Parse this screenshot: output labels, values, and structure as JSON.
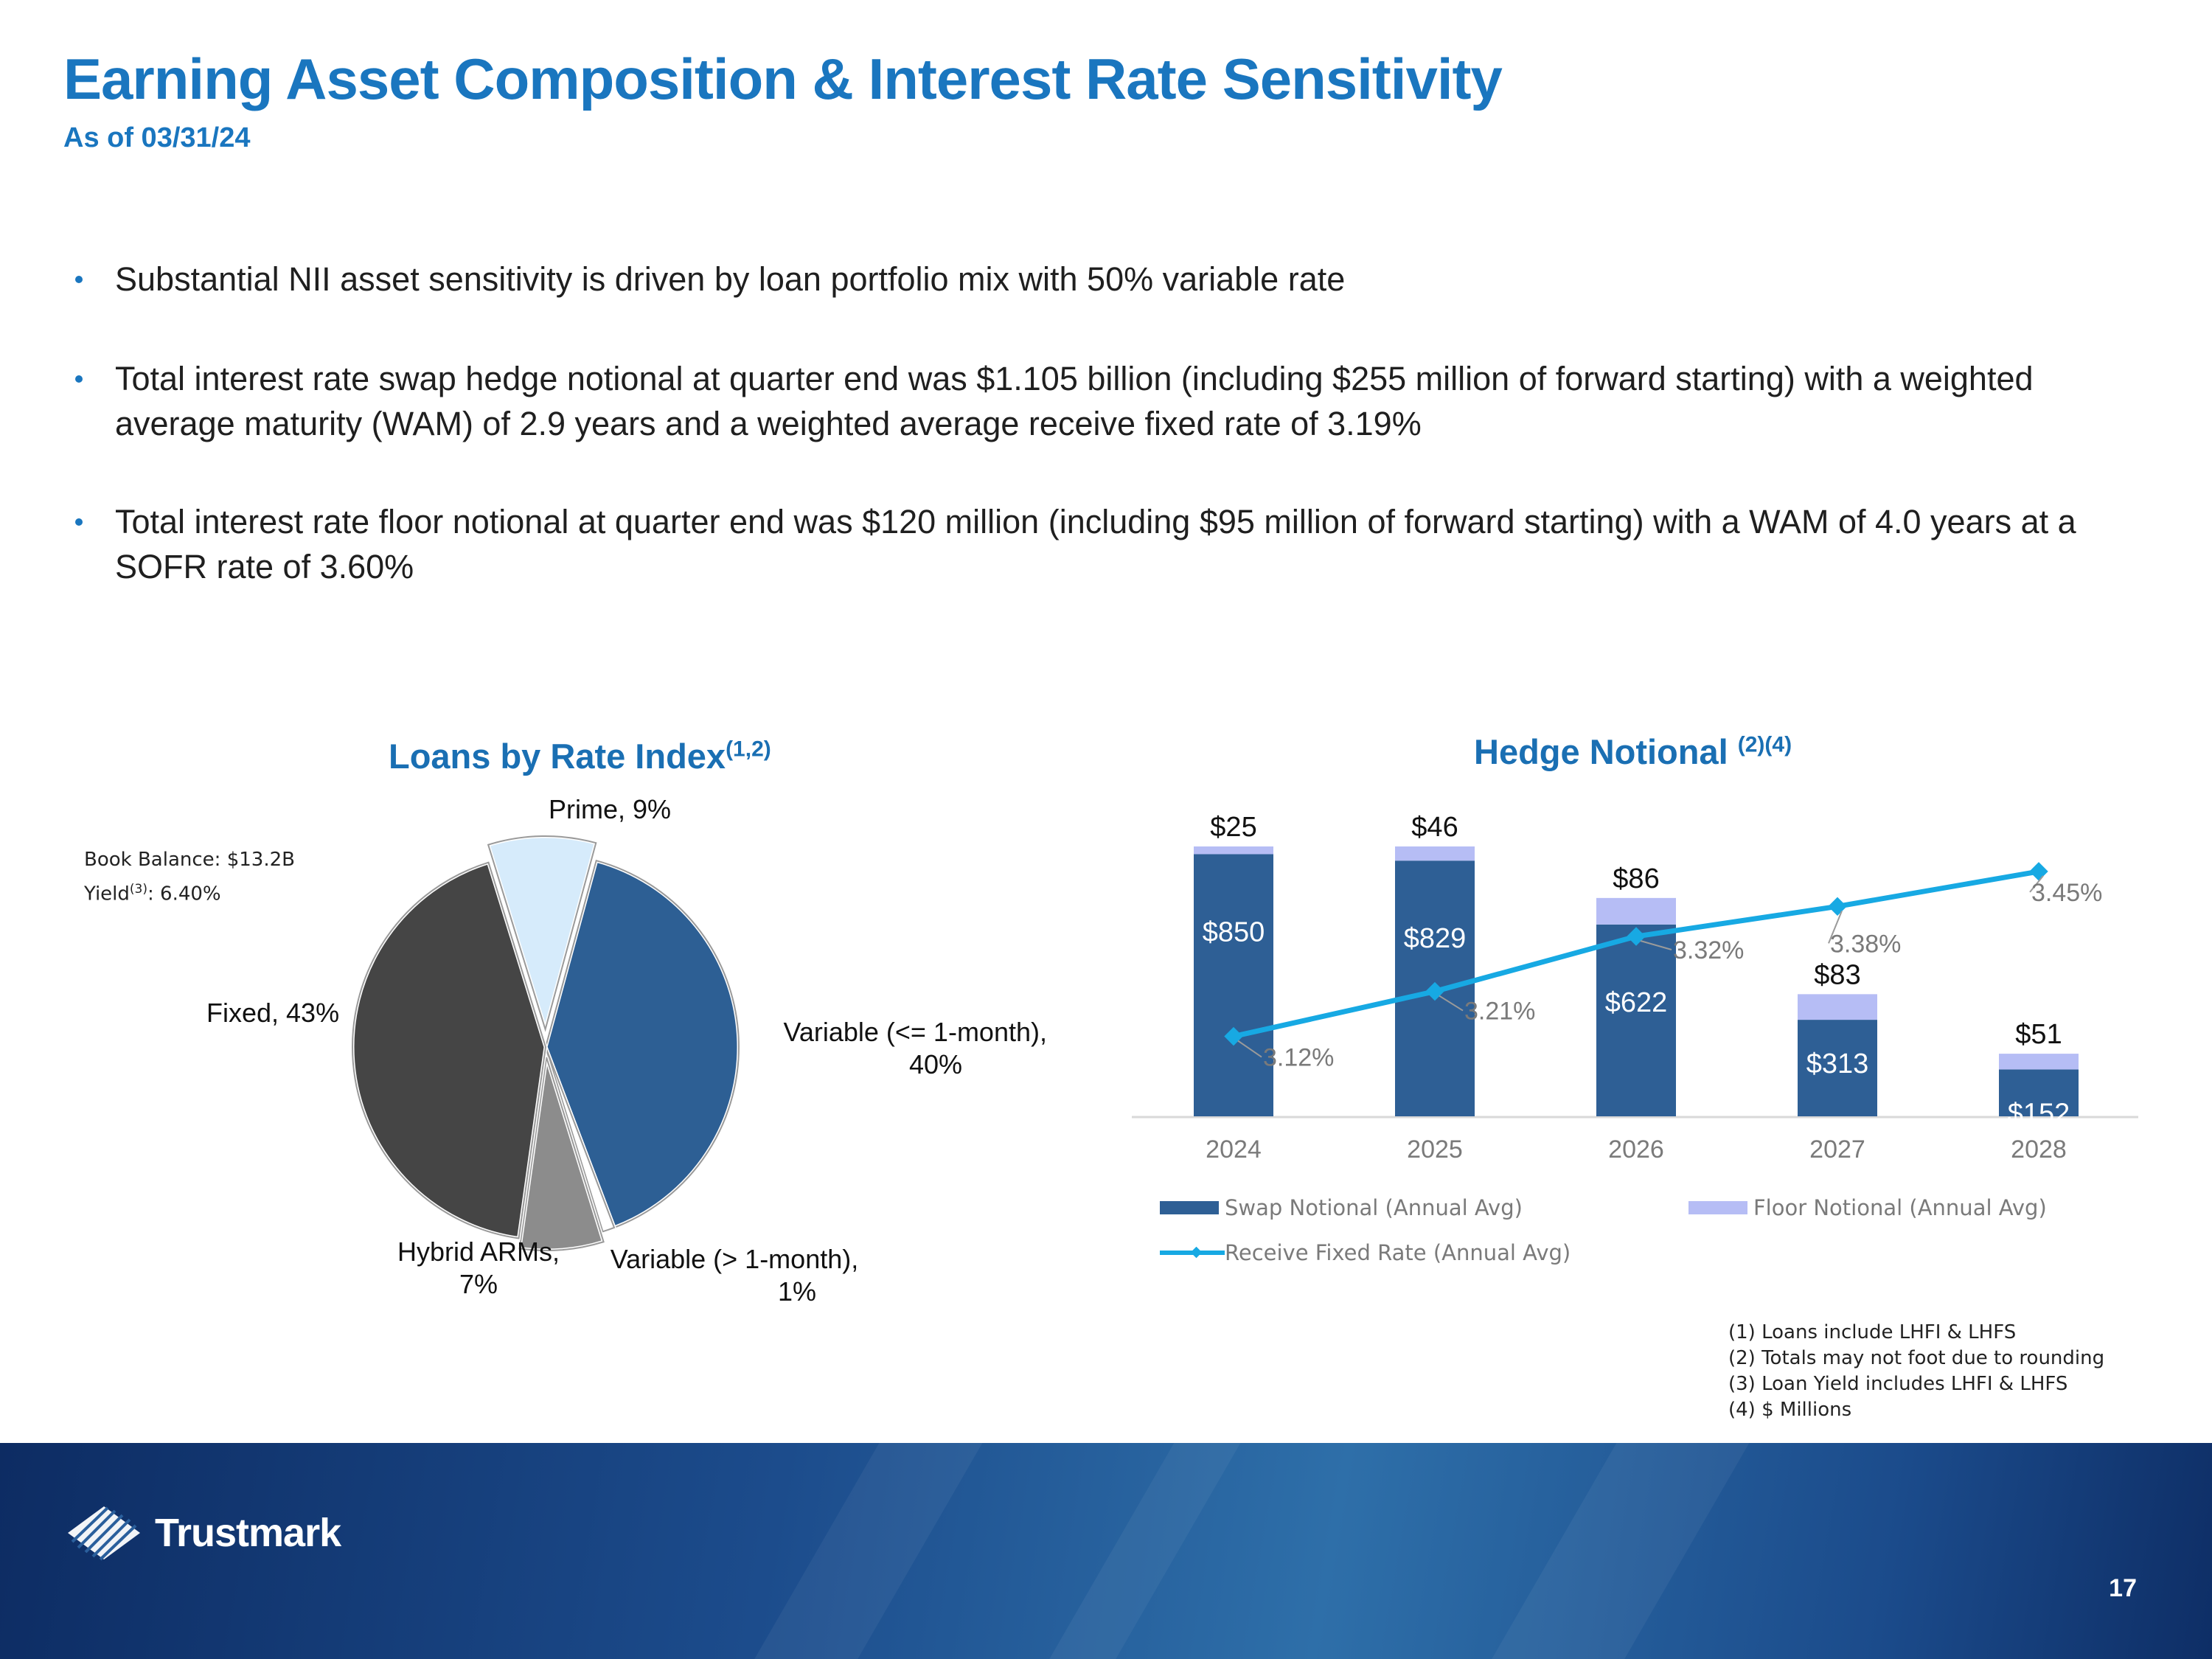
{
  "header": {
    "title": "Earning Asset Composition & Interest Rate Sensitivity",
    "subtitle": "As of 03/31/24"
  },
  "bullets": [
    "Substantial NII asset sensitivity is driven by loan portfolio mix with 50% variable rate",
    "Total interest rate swap hedge notional at quarter end was $1.105 billion (including $255 million of forward starting) with a weighted average maturity (WAM) of 2.9 years and a weighted average receive fixed rate of 3.19%",
    "Total interest rate floor notional at quarter end was $120 million (including $95 million of forward starting) with a WAM of 4.0 years at a SOFR rate of 3.60%"
  ],
  "pie_panel": {
    "title": "Loans by Rate Index",
    "title_sup": "(1,2)",
    "book_balance": "Book Balance: $13.2B",
    "yield_label": "Yield",
    "yield_sup": "(3)",
    "yield_value": ": 6.40%",
    "labels": {
      "prime": "Prime, 9%",
      "variable_short": [
        "Variable (<= 1-month),",
        "40%"
      ],
      "variable_long": [
        "Variable (> 1-month),",
        "1%"
      ],
      "hybrid": [
        "Hybrid ARMs,",
        "7%"
      ],
      "fixed": "Fixed, 43%"
    }
  },
  "bar_panel": {
    "title": "Hedge Notional ",
    "title_sup": "(2)(4)",
    "legend": {
      "swap": "Swap Notional (Annual Avg)",
      "floor": "Floor Notional (Annual Avg)",
      "rate": "Receive Fixed Rate (Annual Avg)"
    }
  },
  "chart_data": [
    {
      "type": "pie",
      "title": "Loans by Rate Index(1,2)",
      "slices": [
        {
          "name": "Prime",
          "value": 9
        },
        {
          "name": "Variable (<= 1-month)",
          "value": 40
        },
        {
          "name": "Variable (> 1-month)",
          "value": 1
        },
        {
          "name": "Hybrid ARMs",
          "value": 7
        },
        {
          "name": "Fixed",
          "value": 43
        }
      ]
    },
    {
      "type": "bar",
      "title": "Hedge Notional (2)(4)",
      "stacked": true,
      "categories": [
        "2024",
        "2025",
        "2026",
        "2027",
        "2028"
      ],
      "series": [
        {
          "name": "Swap Notional (Annual Avg)",
          "values": [
            850,
            829,
            622,
            313,
            152
          ],
          "labels": [
            "$850",
            "$829",
            "$622",
            "$313",
            "$152"
          ]
        },
        {
          "name": "Floor Notional (Annual Avg)",
          "values": [
            25,
            46,
            86,
            83,
            51
          ],
          "labels": [
            "$25",
            "$46",
            "$86",
            "$83",
            "$51"
          ]
        },
        {
          "name": "Receive Fixed Rate (Annual Avg)",
          "type": "line",
          "axis": "secondary",
          "values": [
            3.12,
            3.21,
            3.32,
            3.38,
            3.45
          ],
          "labels": [
            "3.12%",
            "3.21%",
            "3.32%",
            "3.38%",
            "3.45%"
          ]
        }
      ],
      "ylim": [
        0,
        875
      ],
      "y2lim": [
        2.96,
        3.5
      ]
    }
  ],
  "footer": {
    "brand": "Trustmark",
    "page_number": "17"
  },
  "footnotes": [
    "(1) Loans include LHFI & LHFS",
    "(2) Totals may not foot due to rounding",
    "(3) Loan Yield includes LHFI & LHFS",
    "(4) $ Millions"
  ],
  "colors": {
    "title_blue": "#1a76bf",
    "swap_bar": "#2e5f95",
    "floor_bar": "#b6bdf5",
    "rate_line": "#17a9e3",
    "fixed": "#454545",
    "hybrid": "#8c8c8c",
    "prime": "#d6ebfb"
  }
}
